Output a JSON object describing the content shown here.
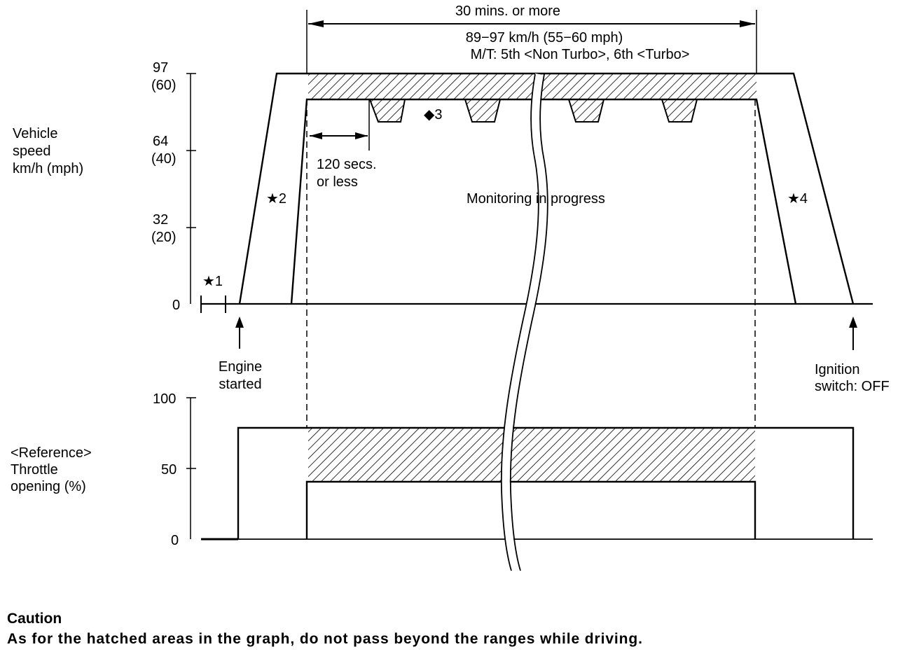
{
  "header": {
    "duration": "30 mins. or more",
    "speed_range": "89−97 km/h (55−60 mph)",
    "gear_note": "M/T: 5th <Non Turbo>, 6th <Turbo>"
  },
  "speed_chart": {
    "axis_label_lines": [
      "Vehicle",
      "speed",
      "km/h (mph)"
    ],
    "ticks": [
      {
        "kmh": "97",
        "mph": "(60)"
      },
      {
        "kmh": "64",
        "mph": "(40)"
      },
      {
        "kmh": "32",
        "mph": "(20)"
      },
      {
        "kmh": "0",
        "mph": ""
      }
    ],
    "marker_1": "★1",
    "marker_2": "★2",
    "marker_3": "◆3",
    "marker_4": "★4",
    "interval_lines": [
      "120 secs.",
      "or less"
    ],
    "monitoring": "Monitoring in progress",
    "engine_started_lines": [
      "Engine",
      "started"
    ],
    "ignition_off_lines": [
      "Ignition",
      "switch: OFF"
    ]
  },
  "throttle_chart": {
    "axis_label_lines": [
      "<Reference>",
      "Throttle",
      "opening (%)"
    ],
    "ticks": [
      "100",
      "50",
      "0"
    ]
  },
  "caution": {
    "title": "Caution",
    "text": "As for the hatched areas in the graph, do not pass beyond the ranges while driving."
  }
}
